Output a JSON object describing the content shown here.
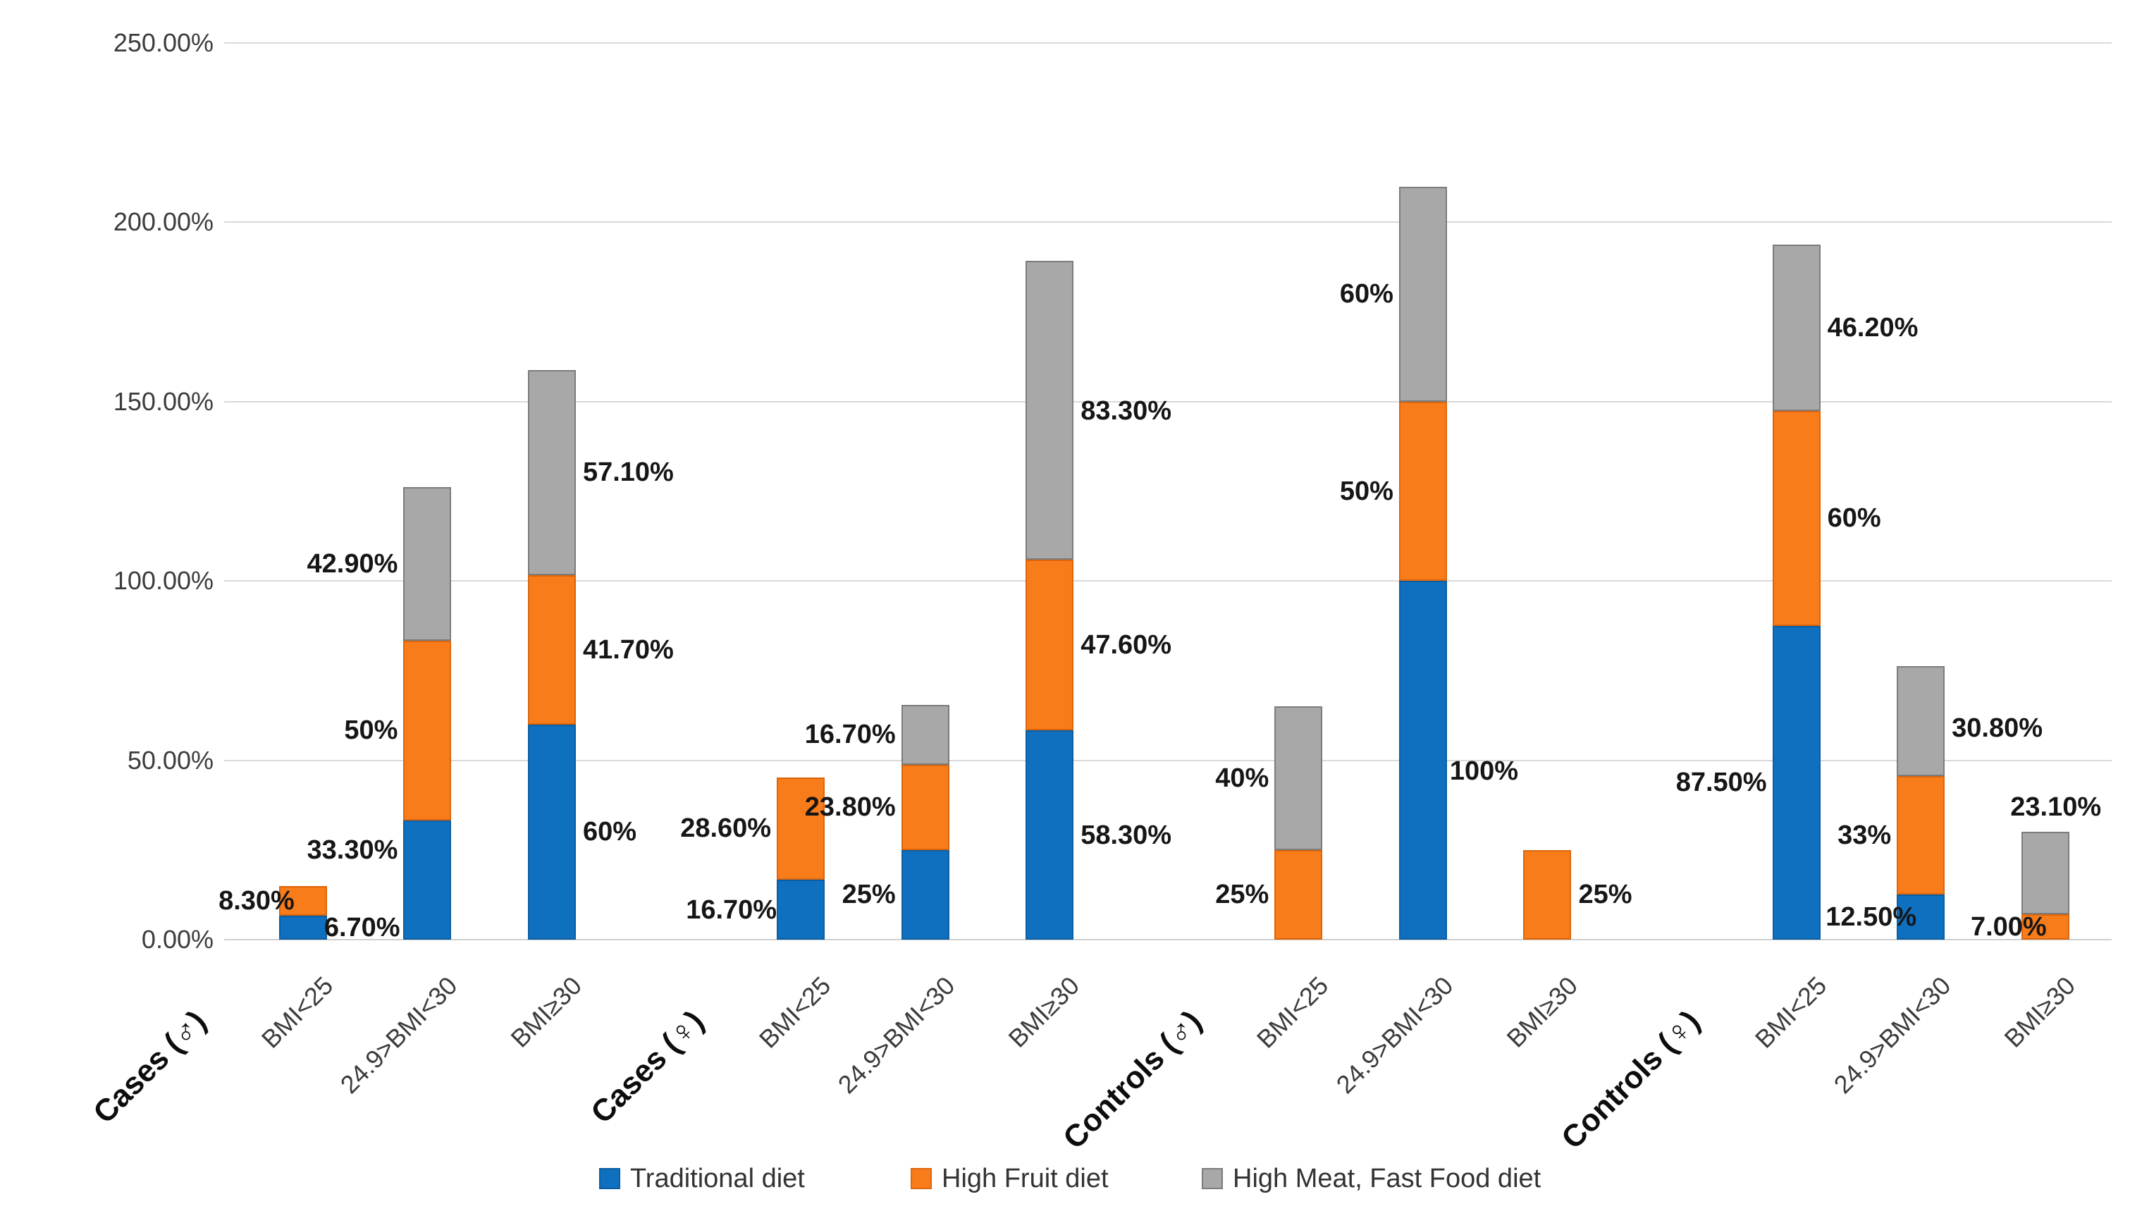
{
  "page": {
    "background": "#FFFFFF"
  },
  "chart_data": {
    "type": "bar",
    "stacked": true,
    "title": "",
    "grid": true,
    "legend_position": "bottom",
    "y_axis": {
      "min": 0,
      "max": 250,
      "step": 50,
      "tick_labels": [
        "0.00%",
        "50.00%",
        "100.00%",
        "150.00%",
        "200.00%",
        "250.00%"
      ]
    },
    "series": [
      {
        "name": "Traditional diet",
        "color": "#1070C0",
        "border": "#0B5EA2"
      },
      {
        "name": "High Fruit diet",
        "color": "#F97C1A",
        "border": "#DB660D"
      },
      {
        "name": "High Meat, Fast Food diet",
        "color": "#A8A8A8",
        "border": "#7C7C7C"
      }
    ],
    "groups": [
      {
        "label": "Cases (♂)",
        "bars": [
          {
            "category": "BMI<25",
            "values": [
              6.7,
              8.3,
              0
            ],
            "labels": [
              {
                "text": "8.30%",
                "side": "left",
                "y": 10.85,
                "dx": 30
              },
              {
                "text": "6.70%",
                "side": "right",
                "y": 3.35,
                "dx": -14
              }
            ]
          },
          {
            "category": "24.9>BMI<30",
            "values": [
              33.3,
              50,
              42.9
            ],
            "labels": [
              {
                "text": "42.90%",
                "side": "left",
                "y": 104.75
              },
              {
                "text": "50%",
                "side": "left",
                "y": 58.3
              },
              {
                "text": "33.30%",
                "side": "left",
                "y": 25
              }
            ]
          },
          {
            "category": "BMI≥30",
            "values": [
              60,
              41.7,
              57.1
            ],
            "labels": [
              {
                "text": "57.10%",
                "side": "right",
                "y": 130.25
              },
              {
                "text": "41.70%",
                "side": "right",
                "y": 80.85
              },
              {
                "text": "60%",
                "side": "right",
                "y": 30
              }
            ]
          }
        ]
      },
      {
        "label": "Cases (♀)",
        "bars": [
          {
            "category": "BMI<25",
            "values": [
              16.7,
              28.6,
              0
            ],
            "labels": [
              {
                "text": "28.60%",
                "side": "left",
                "y": 31
              },
              {
                "text": "16.70%",
                "side": "left",
                "y": 8.35,
                "dx": 8
              }
            ]
          },
          {
            "category": "24.9>BMI<30",
            "values": [
              25,
              23.8,
              16.7
            ],
            "labels": [
              {
                "text": "16.70%",
                "side": "left",
                "y": 57.15
              },
              {
                "text": "23.80%",
                "side": "left",
                "y": 36.9
              },
              {
                "text": "25%",
                "side": "left",
                "y": 12.5
              }
            ]
          },
          {
            "category": "BMI≥30",
            "values": [
              58.3,
              47.6,
              83.3
            ],
            "labels": [
              {
                "text": "83.30%",
                "side": "right",
                "y": 147.45
              },
              {
                "text": "47.60%",
                "side": "right",
                "y": 82.1
              },
              {
                "text": "58.30%",
                "side": "right",
                "y": 29.15
              }
            ]
          }
        ]
      },
      {
        "label": "Controls (♂)",
        "bars": [
          {
            "category": "BMI<25",
            "values": [
              0,
              25,
              40
            ],
            "labels": [
              {
                "text": "40%",
                "side": "left",
                "y": 45
              },
              {
                "text": "25%",
                "side": "left",
                "y": 12.5
              }
            ]
          },
          {
            "category": "24.9>BMI<30",
            "values": [
              100,
              50,
              60
            ],
            "labels": [
              {
                "text": "60%",
                "side": "left",
                "y": 180
              },
              {
                "text": "50%",
                "side": "left",
                "y": 125
              },
              {
                "text": "100%",
                "side": "right",
                "y": 47,
                "dx": -6
              }
            ]
          },
          {
            "category": "BMI≥30",
            "values": [
              0,
              25,
              0
            ],
            "labels": [
              {
                "text": "25%",
                "side": "right",
                "y": 12.5
              }
            ]
          }
        ]
      },
      {
        "label": "Controls (♀)",
        "bars": [
          {
            "category": "BMI<25",
            "values": [
              87.5,
              60,
              46.2
            ],
            "labels": [
              {
                "text": "46.20%",
                "side": "right",
                "y": 170.6
              },
              {
                "text": "60%",
                "side": "right",
                "y": 117.5
              },
              {
                "text": "87.50%",
                "side": "left",
                "y": 43.75
              }
            ]
          },
          {
            "category": "24.9>BMI<30",
            "values": [
              12.5,
              33,
              30.8
            ],
            "labels": [
              {
                "text": "30.80%",
                "side": "right",
                "y": 58.9
              },
              {
                "text": "33%",
                "side": "left",
                "y": 29
              },
              {
                "text": "12.50%",
                "side": "left",
                "y": 6.25,
                "dx": 36
              }
            ]
          },
          {
            "category": "BMI≥30",
            "values": [
              0,
              7,
              23.1
            ],
            "labels": [
              {
                "text": "23.10%",
                "side": "above",
                "y": 37,
                "dx": 15
              },
              {
                "text": "7.00%",
                "side": "left",
                "y": 3.5,
                "dx": 44
              }
            ]
          }
        ]
      }
    ]
  }
}
